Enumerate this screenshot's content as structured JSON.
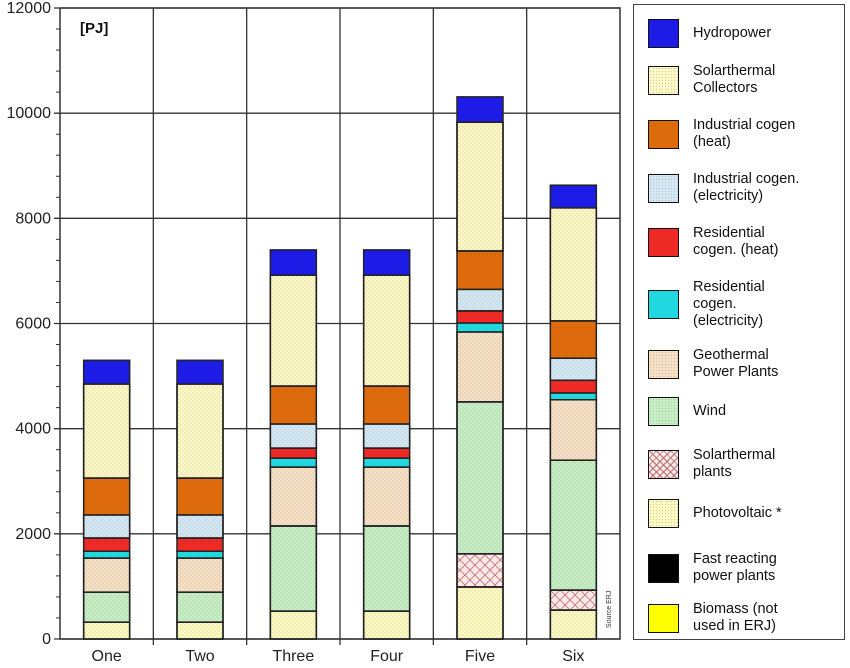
{
  "chart_data": {
    "type": "bar",
    "stacked": true,
    "unit_label": "[PJ]",
    "source_note": "Source ERJ",
    "ylim": [
      0,
      12000
    ],
    "yticks": [
      "0",
      "2000",
      "4000",
      "6000",
      "8000",
      "10000",
      "12000"
    ],
    "ytick_values": [
      0,
      2000,
      4000,
      6000,
      8000,
      10000,
      12000
    ],
    "categories": [
      "One",
      "Two",
      "Three",
      "Four",
      "Five",
      "Six"
    ],
    "grid": true,
    "legend_position": "right",
    "series": [
      {
        "name": "Photovoltaic *",
        "color": "#fdfac0",
        "pattern": "dots",
        "values": [
          320,
          320,
          530,
          530,
          990,
          550
        ]
      },
      {
        "name": "Solarthermal plants",
        "color": "#fbe9e9",
        "pattern": "cross",
        "values": [
          0,
          0,
          0,
          0,
          630,
          380
        ]
      },
      {
        "name": "Wind",
        "color": "#c6efc4",
        "pattern": "dots",
        "values": [
          570,
          570,
          1620,
          1620,
          2890,
          2470
        ]
      },
      {
        "name": "Geothermal Power Plants",
        "color": "#f7e0c4",
        "pattern": "dots",
        "values": [
          650,
          650,
          1120,
          1120,
          1330,
          1150
        ]
      },
      {
        "name": "Residential cogen. (electricity)",
        "color": "#22d8e0",
        "pattern": "solid",
        "values": [
          130,
          130,
          170,
          170,
          170,
          130
        ]
      },
      {
        "name": "Residential cogen. (heat)",
        "color": "#ee2a26",
        "pattern": "solid",
        "values": [
          250,
          250,
          190,
          190,
          230,
          240
        ]
      },
      {
        "name": "Industrial cogen. (electricity)",
        "color": "#d4e8f4",
        "pattern": "dots",
        "values": [
          440,
          440,
          460,
          460,
          410,
          420
        ]
      },
      {
        "name": "Industrial cogen (heat)",
        "color": "#dd6a0c",
        "pattern": "solid",
        "values": [
          700,
          700,
          720,
          720,
          730,
          710
        ]
      },
      {
        "name": "Solarthermal Collectors",
        "color": "#fdf8c4",
        "pattern": "dots",
        "values": [
          1790,
          1790,
          2110,
          2110,
          2450,
          2150
        ]
      },
      {
        "name": "Hydropower",
        "color": "#1c1ce6",
        "pattern": "solid",
        "values": [
          450,
          450,
          480,
          480,
          480,
          430
        ]
      },
      {
        "name": "Fast reacting power plants",
        "color": "#000000",
        "pattern": "solid",
        "values": [
          0,
          0,
          0,
          0,
          0,
          0
        ]
      },
      {
        "name": "Biomass (not used in ERJ)",
        "color": "#ffff00",
        "pattern": "solid",
        "values": [
          0,
          0,
          0,
          0,
          0,
          0
        ]
      }
    ]
  },
  "legend": {
    "items": [
      {
        "label": "Hydropower",
        "color": "#1c1ce6",
        "pattern": "solid"
      },
      {
        "label": "Solarthermal\nCollectors",
        "color": "#fdf8c4",
        "pattern": "dots"
      },
      {
        "label": "Industrial cogen\n(heat)",
        "color": "#dd6a0c",
        "pattern": "solid"
      },
      {
        "label": "Industrial cogen.\n(electricity)",
        "color": "#d4e8f4",
        "pattern": "dots"
      },
      {
        "label": "Residential\ncogen. (heat)",
        "color": "#ee2a26",
        "pattern": "solid"
      },
      {
        "label": "Residential\ncogen.\n(electricity)",
        "color": "#22d8e0",
        "pattern": "solid"
      },
      {
        "label": "Geothermal\nPower Plants",
        "color": "#f7e0c4",
        "pattern": "dots"
      },
      {
        "label": "Wind",
        "color": "#c6efc4",
        "pattern": "dots"
      },
      {
        "label": "Solarthermal\nplants",
        "color": "#fbe9e9",
        "pattern": "cross"
      },
      {
        "label": "Photovoltaic *",
        "color": "#fdfac0",
        "pattern": "dots"
      },
      {
        "label": "Fast reacting\npower plants",
        "color": "#000000",
        "pattern": "solid"
      },
      {
        "label": "Biomass (not\nused in ERJ)",
        "color": "#ffff00",
        "pattern": "solid"
      }
    ]
  }
}
